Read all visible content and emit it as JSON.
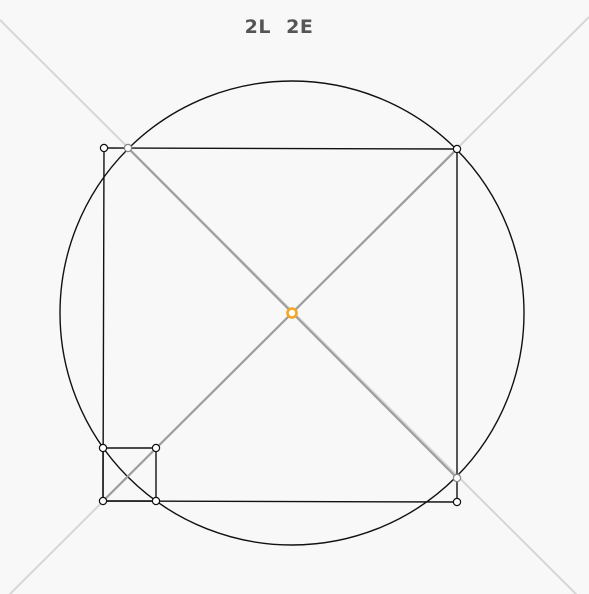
{
  "score": {
    "lines_moves": "2L",
    "euclid_moves": "2E"
  },
  "colors": {
    "background": "#f8f8f8",
    "guide_line": "#d6d6d6",
    "construction_line": "#9e9e9e",
    "shape_stroke": "#111111",
    "point_fill": "#ffffff",
    "center_point": "#f5a623"
  },
  "geometry": {
    "center": "center-point",
    "shapes": [
      "circle",
      "square",
      "small-square",
      "diagonal-1",
      "diagonal-2"
    ]
  }
}
